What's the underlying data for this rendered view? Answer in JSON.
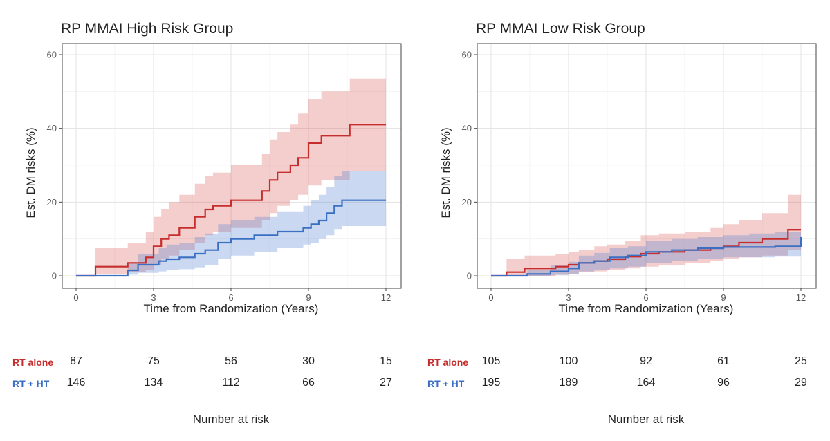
{
  "chart_data": [
    {
      "type": "line",
      "title": "RP MMAI High Risk Group",
      "xlabel": "Time from Randomization (Years)",
      "ylabel": "Est. DM risks (%)",
      "xlim": [
        0,
        12
      ],
      "ylim": [
        0,
        60
      ],
      "x_ticks": [
        "0",
        "3",
        "6",
        "9",
        "12"
      ],
      "y_ticks": [
        "0",
        "20",
        "40",
        "60"
      ],
      "grid": true,
      "series": [
        {
          "name": "RT alone",
          "color": "#c62d2d",
          "x": [
            0,
            0.75,
            2.0,
            2.7,
            3.0,
            3.3,
            3.6,
            4.0,
            4.6,
            5.0,
            5.3,
            6.0,
            7.2,
            7.5,
            7.8,
            8.3,
            8.6,
            9.0,
            9.5,
            10.6,
            12.0
          ],
          "y": [
            0,
            2.5,
            3.5,
            5,
            8,
            10,
            11,
            13,
            16,
            18,
            19,
            20.5,
            23,
            26,
            28,
            30,
            32,
            36,
            38,
            41,
            41
          ],
          "lower": [
            0,
            0.5,
            1.0,
            1.5,
            3,
            4.5,
            5.5,
            7,
            9,
            11,
            12,
            13,
            15,
            17,
            19,
            20.5,
            22,
            24.5,
            26,
            28.5,
            28.5
          ],
          "upper": [
            0,
            7.5,
            9.0,
            12,
            16,
            18,
            20,
            22,
            25,
            27,
            28,
            30,
            33,
            37,
            39,
            41,
            44,
            48,
            50,
            53.5,
            53.5
          ]
        },
        {
          "name": "RT + HT",
          "color": "#3a6fc4",
          "x": [
            0,
            0.75,
            2.0,
            2.4,
            3.2,
            3.5,
            4.0,
            4.6,
            5.0,
            5.5,
            6.0,
            6.9,
            7.8,
            8.8,
            9.1,
            9.4,
            9.7,
            10.0,
            10.3,
            12.0
          ],
          "y": [
            0,
            0,
            1.5,
            3,
            4,
            4.5,
            5,
            6,
            7,
            9,
            10,
            11,
            12,
            13,
            14,
            15,
            17,
            19,
            20.5,
            20.5
          ],
          "lower": [
            0,
            0,
            0.3,
            0.8,
            1.2,
            1.5,
            1.8,
            2.3,
            3,
            4.5,
            5.5,
            6.5,
            7.5,
            8.5,
            9,
            10,
            11,
            12.5,
            13.5,
            13.5
          ],
          "upper": [
            0,
            0,
            3.5,
            6,
            7.5,
            8.5,
            9,
            10.5,
            11.5,
            14,
            15,
            16,
            17.5,
            19,
            20.5,
            22,
            24,
            27,
            28.5,
            28.5
          ]
        }
      ],
      "risk_table": {
        "caption": "Number at risk",
        "times": [
          0,
          3,
          6,
          9,
          12
        ],
        "rows": [
          {
            "label": "RT alone",
            "color": "#c62d2d",
            "values": [
              "87",
              "75",
              "56",
              "30",
              "15"
            ]
          },
          {
            "label": "RT + HT",
            "color": "#3a6fc4",
            "values": [
              "146",
              "134",
              "112",
              "66",
              "27"
            ]
          }
        ]
      }
    },
    {
      "type": "line",
      "title": "RP MMAI Low Risk Group",
      "xlabel": "Time from Randomization (Years)",
      "ylabel": "Est. DM risks (%)",
      "xlim": [
        0,
        12
      ],
      "ylim": [
        0,
        60
      ],
      "x_ticks": [
        "0",
        "3",
        "6",
        "9",
        "12"
      ],
      "y_ticks": [
        "0",
        "20",
        "40",
        "60"
      ],
      "grid": true,
      "series": [
        {
          "name": "RT alone",
          "color": "#c62d2d",
          "x": [
            0,
            0.6,
            1.3,
            2.5,
            3.0,
            3.4,
            4.0,
            4.5,
            5.2,
            5.8,
            6.5,
            7.5,
            8.5,
            9.0,
            9.6,
            10.5,
            11.5,
            12.0
          ],
          "y": [
            0,
            1,
            2,
            2.5,
            3,
            3.5,
            4,
            4.5,
            5.2,
            6,
            6.5,
            7,
            7.5,
            8,
            9,
            10,
            12.5,
            12.5
          ],
          "lower": [
            0,
            0,
            0,
            0.3,
            0.5,
            1,
            1.2,
            1.5,
            2,
            2.5,
            3,
            3.5,
            4,
            4.5,
            5,
            5.5,
            7,
            7
          ],
          "upper": [
            0,
            4.5,
            5.5,
            6,
            6.5,
            7,
            8,
            8.5,
            9.5,
            11,
            11.5,
            12,
            13,
            14,
            15,
            17,
            22,
            22
          ]
        },
        {
          "name": "RT + HT",
          "color": "#3a6fc4",
          "x": [
            0,
            1.4,
            2.3,
            3.0,
            3.4,
            4.0,
            4.6,
            5.3,
            6.0,
            7.0,
            8.0,
            9.0,
            10.0,
            11.0,
            11.9,
            12.0
          ],
          "y": [
            0,
            0.5,
            1.2,
            2,
            3.5,
            4,
            5,
            5.5,
            6.5,
            7,
            7.5,
            7.8,
            7.8,
            8,
            8,
            10.5
          ],
          "lower": [
            0,
            0,
            0.2,
            0.5,
            1.2,
            1.5,
            2,
            2.5,
            3.5,
            4,
            4.5,
            5,
            5,
            5.2,
            5.2,
            6
          ],
          "upper": [
            0,
            1.5,
            2.8,
            3.8,
            5.5,
            6.2,
            7.5,
            8,
            9.5,
            10,
            10.5,
            11,
            11.5,
            12,
            12,
            16
          ]
        }
      ],
      "risk_table": {
        "caption": "Number at risk",
        "times": [
          0,
          3,
          6,
          9,
          12
        ],
        "rows": [
          {
            "label": "RT alone",
            "color": "#c62d2d",
            "values": [
              "105",
              "100",
              "92",
              "61",
              "25"
            ]
          },
          {
            "label": "RT + HT",
            "color": "#3a6fc4",
            "values": [
              "195",
              "189",
              "164",
              "96",
              "29"
            ]
          }
        ]
      }
    }
  ]
}
